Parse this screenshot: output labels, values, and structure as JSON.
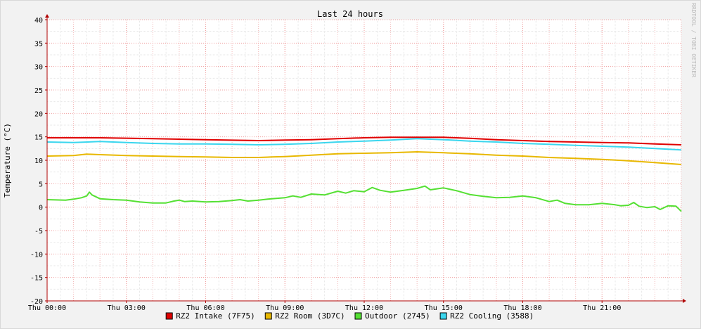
{
  "chart_data": {
    "type": "line",
    "title": "Last 24 hours",
    "ylabel": "Temperature (°C)",
    "xlabel": "",
    "watermark": "RRDTOOL / TOBI OETIKER",
    "x_range_hours": [
      0,
      24
    ],
    "ylim": [
      -20,
      40
    ],
    "y_ticks": [
      40,
      35,
      30,
      25,
      20,
      15,
      10,
      5,
      0,
      -5,
      -10,
      -15,
      -20
    ],
    "x_ticks": [
      {
        "hour": 0,
        "label": "Thu 00:00"
      },
      {
        "hour": 3,
        "label": "Thu 03:00"
      },
      {
        "hour": 6,
        "label": "Thu 06:00"
      },
      {
        "hour": 9,
        "label": "Thu 09:00"
      },
      {
        "hour": 12,
        "label": "Thu 12:00"
      },
      {
        "hour": 15,
        "label": "Thu 15:00"
      },
      {
        "hour": 18,
        "label": "Thu 18:00"
      },
      {
        "hour": 21,
        "label": "Thu 21:00"
      }
    ],
    "grid": true,
    "legend_position": "bottom",
    "series": [
      {
        "name": "RZ2 Intake (7F75)",
        "color": "#e00000",
        "points": [
          [
            0,
            14.8
          ],
          [
            2,
            14.8
          ],
          [
            4,
            14.6
          ],
          [
            6,
            14.4
          ],
          [
            8,
            14.2
          ],
          [
            9,
            14.3
          ],
          [
            10,
            14.4
          ],
          [
            11,
            14.6
          ],
          [
            12,
            14.8
          ],
          [
            13,
            14.9
          ],
          [
            14,
            14.9
          ],
          [
            15,
            14.9
          ],
          [
            16,
            14.7
          ],
          [
            17,
            14.4
          ],
          [
            18,
            14.2
          ],
          [
            19,
            14.0
          ],
          [
            20,
            13.9
          ],
          [
            21,
            13.8
          ],
          [
            22,
            13.7
          ],
          [
            23,
            13.5
          ],
          [
            24,
            13.3
          ]
        ]
      },
      {
        "name": "RZ2 Room (3D7C)",
        "color": "#e8b800",
        "points": [
          [
            0,
            10.9
          ],
          [
            1,
            11.0
          ],
          [
            1.5,
            11.3
          ],
          [
            2,
            11.2
          ],
          [
            3,
            11.0
          ],
          [
            4,
            10.9
          ],
          [
            5,
            10.8
          ],
          [
            6,
            10.7
          ],
          [
            7,
            10.6
          ],
          [
            8,
            10.6
          ],
          [
            8.5,
            10.7
          ],
          [
            9,
            10.8
          ],
          [
            10,
            11.1
          ],
          [
            11,
            11.4
          ],
          [
            12,
            11.5
          ],
          [
            13,
            11.6
          ],
          [
            14,
            11.8
          ],
          [
            15,
            11.6
          ],
          [
            16,
            11.4
          ],
          [
            17,
            11.1
          ],
          [
            18,
            10.9
          ],
          [
            19,
            10.6
          ],
          [
            20,
            10.4
          ],
          [
            21,
            10.2
          ],
          [
            22,
            9.9
          ],
          [
            23,
            9.5
          ],
          [
            24,
            9.1
          ]
        ]
      },
      {
        "name": "Outdoor (2745)",
        "color": "#55e033",
        "points": [
          [
            0,
            1.6
          ],
          [
            0.7,
            1.5
          ],
          [
            1,
            1.7
          ],
          [
            1.3,
            2.0
          ],
          [
            1.5,
            2.4
          ],
          [
            1.6,
            3.2
          ],
          [
            1.7,
            2.6
          ],
          [
            2,
            1.8
          ],
          [
            2.5,
            1.6
          ],
          [
            3,
            1.5
          ],
          [
            3.5,
            1.1
          ],
          [
            4,
            0.9
          ],
          [
            4.5,
            0.9
          ],
          [
            4.8,
            1.3
          ],
          [
            5,
            1.5
          ],
          [
            5.2,
            1.2
          ],
          [
            5.5,
            1.3
          ],
          [
            6,
            1.1
          ],
          [
            6.5,
            1.2
          ],
          [
            7,
            1.4
          ],
          [
            7.3,
            1.6
          ],
          [
            7.6,
            1.3
          ],
          [
            8,
            1.5
          ],
          [
            8.5,
            1.8
          ],
          [
            9,
            2.0
          ],
          [
            9.3,
            2.4
          ],
          [
            9.6,
            2.1
          ],
          [
            10,
            2.8
          ],
          [
            10.5,
            2.6
          ],
          [
            11,
            3.4
          ],
          [
            11.3,
            3.0
          ],
          [
            11.6,
            3.5
          ],
          [
            12,
            3.3
          ],
          [
            12.3,
            4.2
          ],
          [
            12.6,
            3.6
          ],
          [
            13,
            3.2
          ],
          [
            13.5,
            3.6
          ],
          [
            14,
            4.0
          ],
          [
            14.3,
            4.5
          ],
          [
            14.5,
            3.7
          ],
          [
            15,
            4.1
          ],
          [
            15.5,
            3.5
          ],
          [
            16,
            2.7
          ],
          [
            16.5,
            2.3
          ],
          [
            17,
            2.0
          ],
          [
            17.5,
            2.1
          ],
          [
            18,
            2.4
          ],
          [
            18.5,
            2.0
          ],
          [
            19,
            1.2
          ],
          [
            19.3,
            1.5
          ],
          [
            19.6,
            0.8
          ],
          [
            20,
            0.5
          ],
          [
            20.5,
            0.5
          ],
          [
            21,
            0.8
          ],
          [
            21.5,
            0.5
          ],
          [
            21.7,
            0.3
          ],
          [
            22,
            0.4
          ],
          [
            22.2,
            1.0
          ],
          [
            22.4,
            0.2
          ],
          [
            22.7,
            -0.1
          ],
          [
            23,
            0.1
          ],
          [
            23.2,
            -0.5
          ],
          [
            23.5,
            0.3
          ],
          [
            23.8,
            0.2
          ],
          [
            24,
            -0.9
          ]
        ]
      },
      {
        "name": "RZ2 Cooling (3588)",
        "color": "#3ad6ee",
        "points": [
          [
            0,
            13.9
          ],
          [
            1,
            13.8
          ],
          [
            2,
            14.0
          ],
          [
            3,
            13.8
          ],
          [
            4,
            13.6
          ],
          [
            5,
            13.5
          ],
          [
            6,
            13.5
          ],
          [
            7,
            13.4
          ],
          [
            8,
            13.3
          ],
          [
            9,
            13.4
          ],
          [
            10,
            13.6
          ],
          [
            11,
            13.9
          ],
          [
            12,
            14.1
          ],
          [
            13,
            14.3
          ],
          [
            14,
            14.6
          ],
          [
            15,
            14.4
          ],
          [
            16,
            14.1
          ],
          [
            17,
            13.9
          ],
          [
            18,
            13.6
          ],
          [
            19,
            13.4
          ],
          [
            20,
            13.2
          ],
          [
            21,
            13.0
          ],
          [
            22,
            12.8
          ],
          [
            23,
            12.5
          ],
          [
            24,
            12.2
          ]
        ]
      }
    ]
  }
}
